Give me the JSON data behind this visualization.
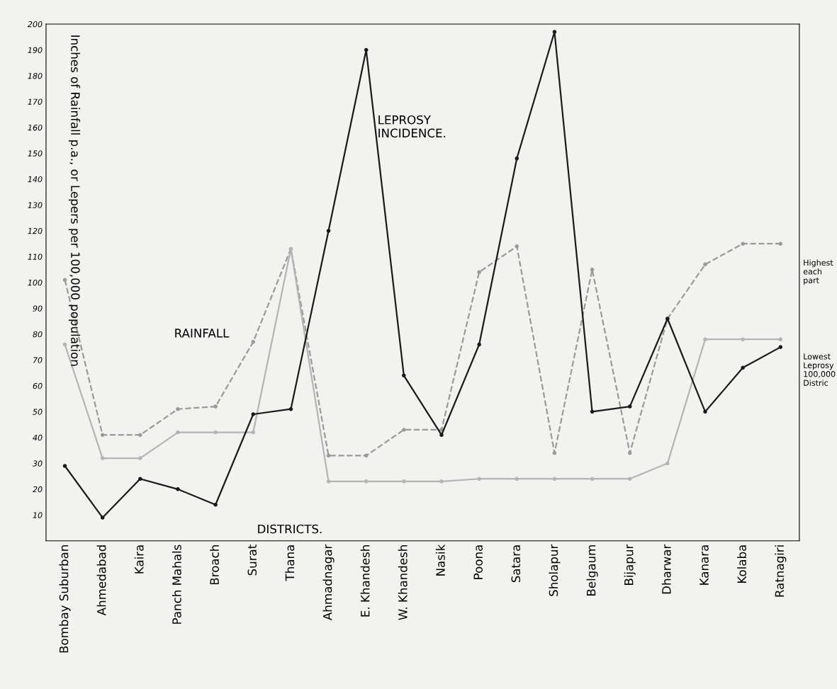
{
  "chart_data": {
    "type": "line",
    "categories": [
      "Bombay Suburban",
      "Ahmedabad",
      "Kaira",
      "Panch Mahals",
      "Broach",
      "Surat",
      "Thana",
      "Ahmadnagar",
      "E. Khandesh",
      "W. Khandesh",
      "Nasik",
      "Poona",
      "Satara",
      "Sholapur",
      "Belgaum",
      "Bijapur",
      "Dharwar",
      "Kanara",
      "Kolaba",
      "Ratnagiri"
    ],
    "ylabel": "Inches of Rainfall p.a., or Lepers per 100,000 population",
    "xlabel": "DISTRICTS.",
    "series": [
      {
        "color": "#9a9a9a",
        "line_style": "dashed",
        "values": [
          101,
          41,
          41,
          51,
          52,
          77,
          113,
          33,
          33,
          43,
          43,
          104,
          114,
          34,
          105,
          34,
          86,
          107,
          115,
          115
        ]
      },
      {
        "color": "#b4b4b4",
        "line_style": "solid",
        "values": [
          76,
          32,
          32,
          42,
          42,
          42,
          113,
          23,
          23,
          23,
          23,
          24,
          24,
          24,
          24,
          24,
          30,
          78,
          78,
          78
        ]
      },
      {
        "color": "#1a1a1a",
        "line_style": "solid",
        "values": [
          29,
          9,
          24,
          20,
          14,
          49,
          51,
          120,
          190,
          64,
          41,
          76,
          148,
          197,
          50,
          52,
          86,
          50,
          67,
          75
        ]
      }
    ],
    "marker": "circle",
    "ylim": [
      0,
      200
    ],
    "yticks": [
      10,
      20,
      30,
      40,
      50,
      60,
      70,
      80,
      90,
      100,
      110,
      120,
      130,
      140,
      150,
      160,
      170,
      180,
      190,
      200
    ],
    "annotations": [
      "RAINFALL",
      "LEPROSY\nINCIDENCE.",
      "Highest\neach\npart",
      "Lowest\nLeprosy\n100,000\nDistric"
    ]
  }
}
